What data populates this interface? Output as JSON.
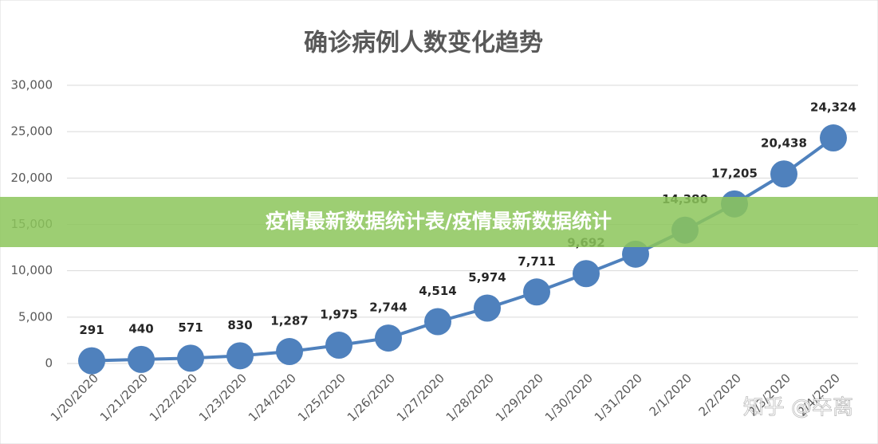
{
  "chart_data": {
    "type": "line",
    "title": "确诊病例人数变化趋势",
    "categories": [
      "1/20/2020",
      "1/21/2020",
      "1/22/2020",
      "1/23/2020",
      "1/24/2020",
      "1/25/2020",
      "1/26/2020",
      "1/27/2020",
      "1/28/2020",
      "1/29/2020",
      "1/30/2020",
      "1/31/2020",
      "2/1/2020",
      "2/2/2020",
      "2/3/2020",
      "2/4/2020"
    ],
    "values": [
      291,
      440,
      571,
      830,
      1287,
      1975,
      2744,
      4514,
      5974,
      7711,
      9692,
      11791,
      14380,
      17205,
      20438,
      24324
    ],
    "value_labels": [
      "291",
      "440",
      "571",
      "830",
      "1,287",
      "1,975",
      "2,744",
      "4,514",
      "5,974",
      "7,711",
      "9,692",
      null,
      "14,380",
      "17,205",
      "20,438",
      "24,324"
    ],
    "color": "#4f81bd",
    "ylim": [
      0,
      30000
    ],
    "yticks": [
      0,
      {
        "value": 5000,
        "label": "5,000"
      },
      {
        "value": 10000,
        "label": "10,000"
      },
      {
        "value": 15000,
        "label": "15,000"
      },
      {
        "value": 20000,
        "label": "20,000"
      },
      {
        "value": 25000,
        "label": "25,000"
      },
      {
        "value": 30000,
        "label": "30,000"
      }
    ],
    "grid": true
  },
  "banner": "疫情最新数据统计表/疫情最新数据统计",
  "watermark": "知乎 @卒离"
}
